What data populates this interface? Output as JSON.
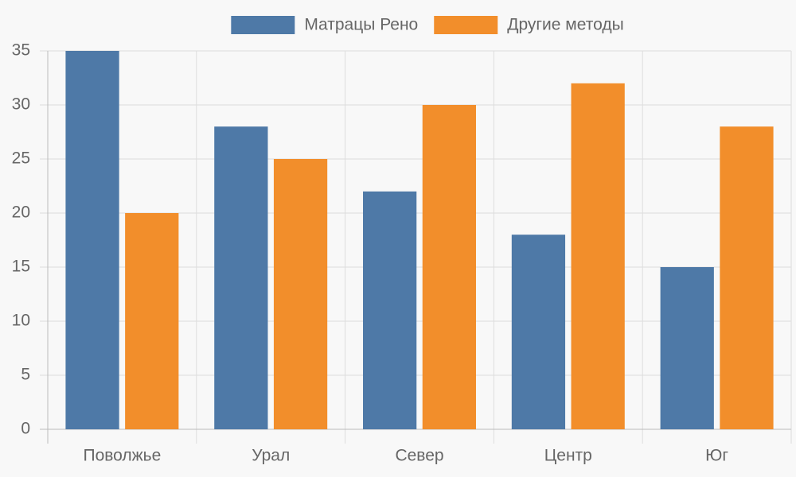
{
  "chart_data": {
    "type": "bar",
    "categories": [
      "Поволжье",
      "Урал",
      "Север",
      "Центр",
      "Юг"
    ],
    "series": [
      {
        "name": "Матрацы Рено",
        "color": "#4e79a7",
        "values": [
          35,
          28,
          22,
          18,
          15
        ]
      },
      {
        "name": "Другие методы",
        "color": "#f28e2b",
        "values": [
          20,
          25,
          30,
          32,
          28
        ]
      }
    ],
    "ylim": [
      0,
      35
    ],
    "yticks": [
      0,
      5,
      10,
      15,
      20,
      25,
      30,
      35
    ],
    "grid": true,
    "legend": "top"
  }
}
